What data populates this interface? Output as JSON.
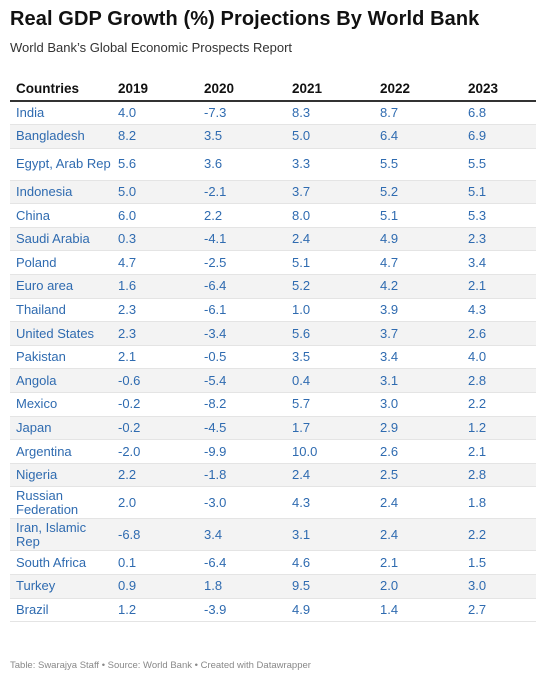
{
  "header": {
    "title": "Real GDP Growth (%) Projections By World Bank",
    "subtitle": "World Bank’s Global Economic Prospects Report"
  },
  "footer": "Table: Swarajya Staff • Source: World Bank • Created with Datawrapper",
  "colors": {
    "value_text": "#2f6bb0",
    "stripe": "#f3f3f3",
    "header_rule": "#333333"
  },
  "chart_data": {
    "type": "table",
    "title": "Real GDP Growth (%) Projections By World Bank",
    "subtitle": "World Bank’s Global Economic Prospects Report",
    "columns": [
      "Countries",
      "2019",
      "2020",
      "2021",
      "2022",
      "2023"
    ],
    "rows": [
      [
        "India",
        "4.0",
        "-7.3",
        "8.3",
        "8.7",
        "6.8"
      ],
      [
        "Bangladesh",
        "8.2",
        "3.5",
        "5.0",
        "6.4",
        "6.9"
      ],
      [
        "Egypt, Arab Rep",
        "5.6",
        "3.6",
        "3.3",
        "5.5",
        "5.5"
      ],
      [
        "Indonesia",
        "5.0",
        "-2.1",
        "3.7",
        "5.2",
        "5.1"
      ],
      [
        "China",
        "6.0",
        "2.2",
        "8.0",
        "5.1",
        "5.3"
      ],
      [
        "Saudi Arabia",
        "0.3",
        "-4.1",
        "2.4",
        "4.9",
        "2.3"
      ],
      [
        "Poland",
        "4.7",
        "-2.5",
        "5.1",
        "4.7",
        "3.4"
      ],
      [
        "Euro area",
        "1.6",
        "-6.4",
        "5.2",
        "4.2",
        "2.1"
      ],
      [
        "Thailand",
        "2.3",
        "-6.1",
        "1.0",
        "3.9",
        "4.3"
      ],
      [
        "United States",
        "2.3",
        "-3.4",
        "5.6",
        "3.7",
        "2.6"
      ],
      [
        "Pakistan",
        "2.1",
        "-0.5",
        "3.5",
        "3.4",
        "4.0"
      ],
      [
        "Angola",
        "-0.6",
        "-5.4",
        "0.4",
        "3.1",
        "2.8"
      ],
      [
        "Mexico",
        "-0.2",
        "-8.2",
        "5.7",
        "3.0",
        "2.2"
      ],
      [
        "Japan",
        "-0.2",
        "-4.5",
        "1.7",
        "2.9",
        "1.2"
      ],
      [
        "Argentina",
        "-2.0",
        "-9.9",
        "10.0",
        "2.6",
        "2.1"
      ],
      [
        "Nigeria",
        "2.2",
        "-1.8",
        "2.4",
        "2.5",
        "2.8"
      ],
      [
        "Russian Federation",
        "2.0",
        "-3.0",
        "4.3",
        "2.4",
        "1.8"
      ],
      [
        "Iran, Islamic Rep",
        "-6.8",
        "3.4",
        "3.1",
        "2.4",
        "2.2"
      ],
      [
        "South Africa",
        "0.1",
        "-6.4",
        "4.6",
        "2.1",
        "1.5"
      ],
      [
        "Turkey",
        "0.9",
        "1.8",
        "9.5",
        "2.0",
        "3.0"
      ],
      [
        "Brazil",
        "1.2",
        "-3.9",
        "4.9",
        "1.4",
        "2.7"
      ]
    ]
  }
}
